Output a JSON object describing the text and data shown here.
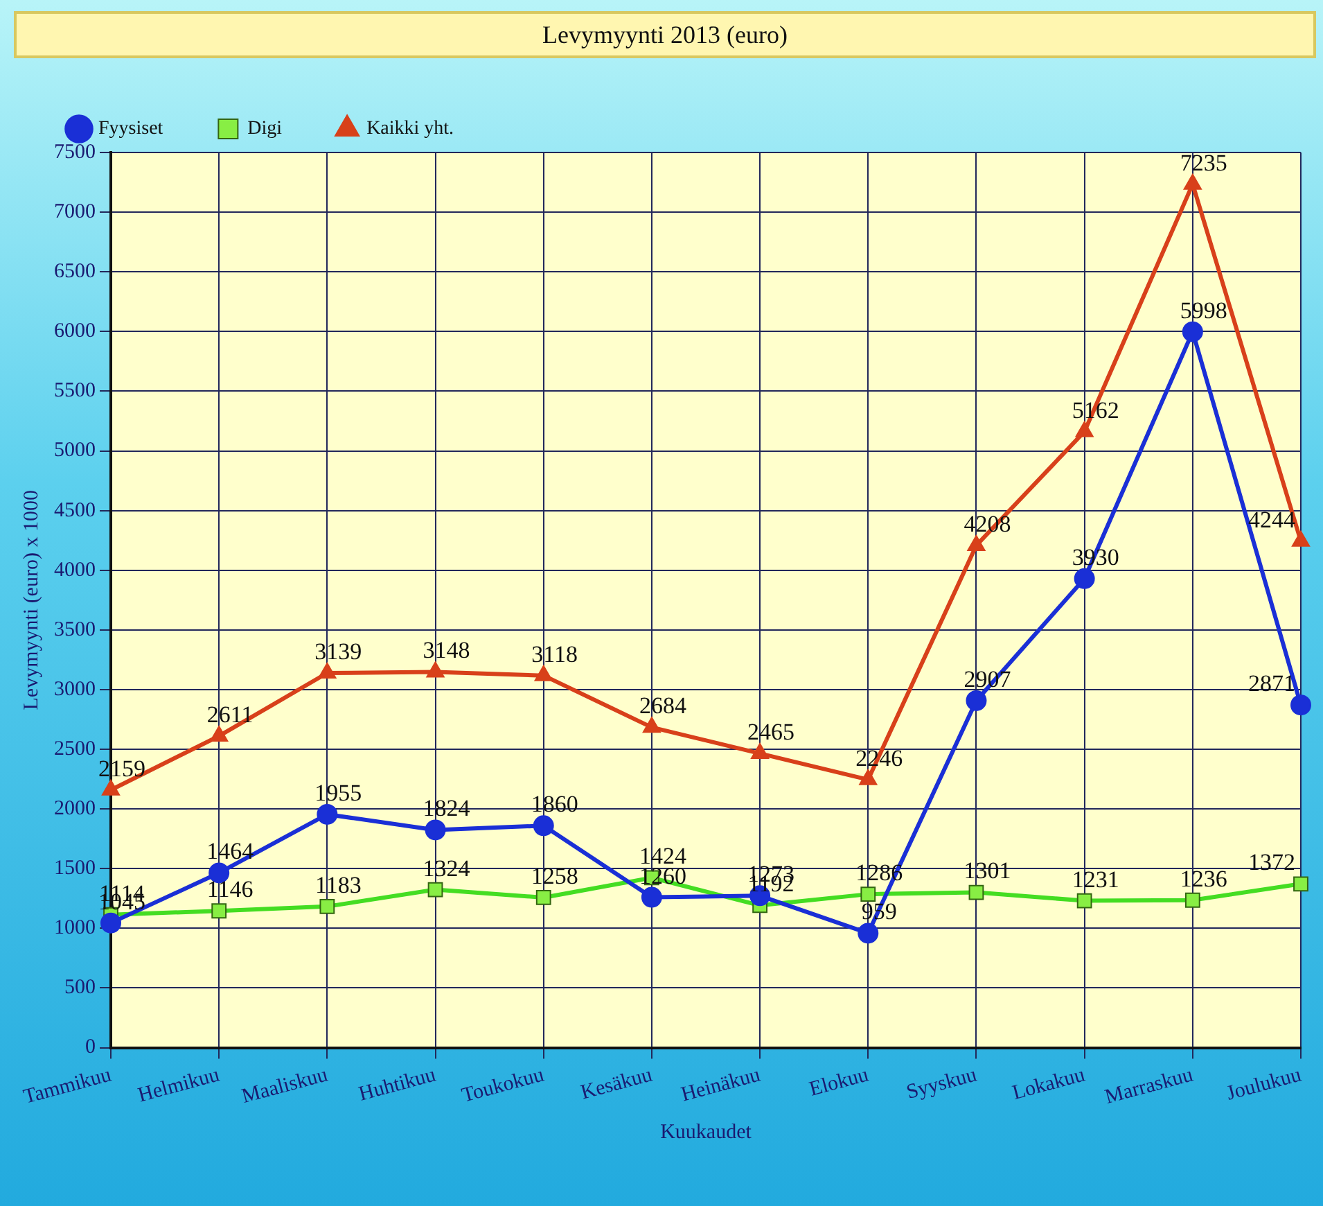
{
  "chart_data": {
    "type": "line",
    "title": "Levymyynti 2013 (euro)",
    "xlabel": "Kuukaudet",
    "ylabel": "Levymyynti (euro) x 1000",
    "categories": [
      "Tammikuu",
      "Helmikuu",
      "Maaliskuu",
      "Huhtikuu",
      "Toukokuu",
      "Kesäkuu",
      "Heinäkuu",
      "Elokuu",
      "Syyskuu",
      "Lokakuu",
      "Marraskuu",
      "Joulukuu"
    ],
    "series": [
      {
        "name": "Fyysiset",
        "color": "#1a2fd6",
        "marker": "circle",
        "values": [
          1045,
          1464,
          1955,
          1824,
          1860,
          1260,
          1273,
          959,
          2907,
          3930,
          5998,
          2871
        ]
      },
      {
        "name": "Digi",
        "color": "#44dd22",
        "marker": "square",
        "values": [
          1114,
          1146,
          1183,
          1324,
          1258,
          1424,
          1192,
          1286,
          1301,
          1231,
          1236,
          1372
        ]
      },
      {
        "name": "Kaikki yht.",
        "color": "#d8401a",
        "marker": "triangle",
        "values": [
          2159,
          2611,
          3139,
          3148,
          3118,
          2684,
          2465,
          2246,
          4208,
          5162,
          7235,
          4244
        ]
      }
    ],
    "ylim": [
      0,
      7500
    ],
    "yticks": [
      0,
      500,
      1000,
      1500,
      2000,
      2500,
      3000,
      3500,
      4000,
      4500,
      5000,
      5500,
      6000,
      6500,
      7000,
      7500
    ],
    "grid": true,
    "legend": "top left",
    "data_labels": true,
    "line_style": "solid"
  }
}
